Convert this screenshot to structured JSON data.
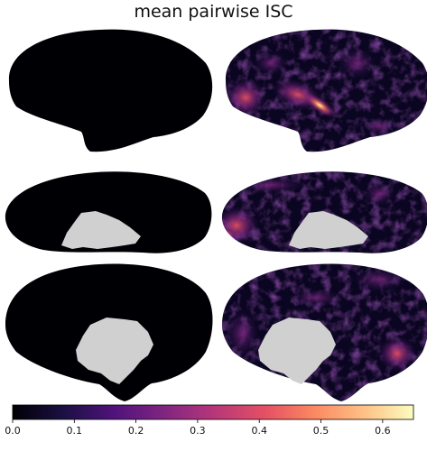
{
  "chart_data": {
    "type": "heatmap",
    "title": "mean pairwise ISC",
    "colormap": "magma",
    "colorbar": {
      "min": 0.0,
      "max": 0.65,
      "ticks": [
        0.0,
        0.1,
        0.2,
        0.3,
        0.4,
        0.5,
        0.6
      ],
      "tick_labels": [
        "0.0",
        "0.1",
        "0.2",
        "0.3",
        "0.4",
        "0.5",
        "0.6"
      ]
    },
    "panels": [
      {
        "row": 1,
        "column": "left",
        "view": "lateral",
        "peak_value": 0.0
      },
      {
        "row": 1,
        "column": "right",
        "view": "lateral",
        "peak_value": 0.62
      },
      {
        "row": 2,
        "column": "left",
        "view": "ventral",
        "peak_value": 0.0
      },
      {
        "row": 2,
        "column": "right",
        "view": "ventral",
        "peak_value": 0.5
      },
      {
        "row": 3,
        "column": "left",
        "view": "medial",
        "peak_value": 0.0
      },
      {
        "row": 3,
        "column": "right",
        "view": "medial",
        "peak_value": 0.45
      }
    ],
    "mask_color": "#d0d0d0",
    "background": "#ffffff"
  }
}
